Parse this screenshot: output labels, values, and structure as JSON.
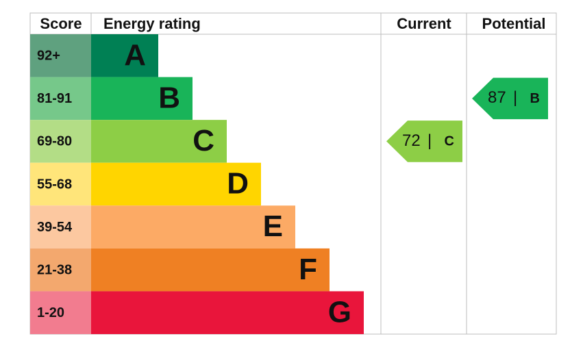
{
  "header": {
    "score": "Score",
    "energy_rating": "Energy rating",
    "current": "Current",
    "potential": "Potential"
  },
  "bands": [
    {
      "score": "92+",
      "letter": "A",
      "color": "#008054",
      "score_color": "#5fa17f"
    },
    {
      "score": "81-91",
      "letter": "B",
      "color": "#19b459",
      "score_color": "#76c88a"
    },
    {
      "score": "69-80",
      "letter": "C",
      "color": "#8dce46",
      "score_color": "#b3dd86"
    },
    {
      "score": "55-68",
      "letter": "D",
      "color": "#ffd500",
      "score_color": "#ffe57a"
    },
    {
      "score": "39-54",
      "letter": "E",
      "color": "#fcaa65",
      "score_color": "#fcc8a0"
    },
    {
      "score": "21-38",
      "letter": "F",
      "color": "#ef8023",
      "score_color": "#f3a86e"
    },
    {
      "score": "1-20",
      "letter": "G",
      "color": "#e9153b",
      "score_color": "#f27c8f"
    }
  ],
  "current": {
    "value": 72,
    "rating": "C"
  },
  "potential": {
    "value": 87,
    "rating": "B"
  },
  "separator": "|"
}
